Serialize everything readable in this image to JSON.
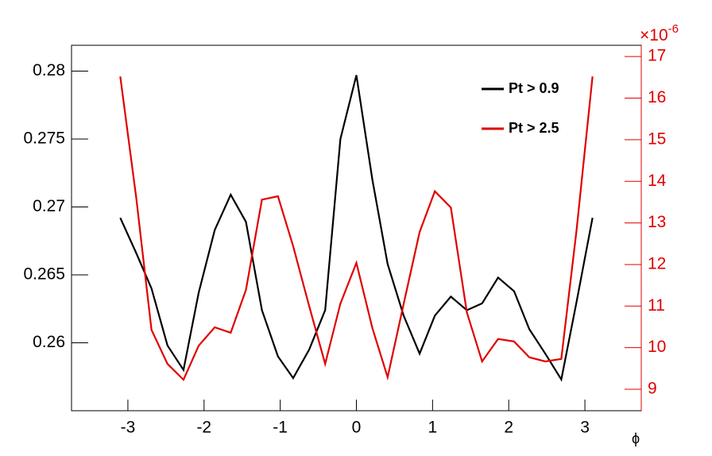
{
  "chart_data": {
    "type": "line",
    "x_label": "ϕ",
    "y2_multiplier": {
      "base": "×10",
      "exponent": "-6"
    },
    "x": [
      -3.1,
      -2.89,
      -2.69,
      -2.48,
      -2.27,
      -2.07,
      -1.86,
      -1.65,
      -1.45,
      -1.24,
      -1.03,
      -0.83,
      -0.62,
      -0.41,
      -0.21,
      0,
      0.21,
      0.41,
      0.62,
      0.83,
      1.03,
      1.24,
      1.45,
      1.65,
      1.86,
      2.07,
      2.27,
      2.48,
      2.69,
      2.89,
      3.1
    ],
    "series": [
      {
        "name": "Pt > 0.9",
        "color": "#000000",
        "values": [
          0.2692,
          0.2666,
          0.264,
          0.2598,
          0.258,
          0.2637,
          0.2683,
          0.2709,
          0.2689,
          0.2624,
          0.259,
          0.2574,
          0.2595,
          0.2624,
          0.275,
          0.2797,
          0.272,
          0.2658,
          0.262,
          0.2592,
          0.262,
          0.2634,
          0.2624,
          0.2629,
          0.2648,
          0.2638,
          0.261,
          0.2592,
          0.2573,
          0.263,
          0.2692
        ]
      },
      {
        "name": "Pt > 2.5",
        "color": "#e00000",
        "axis": "y2",
        "values": [
          16.52,
          13.6,
          10.43,
          9.61,
          9.23,
          10.05,
          10.49,
          10.36,
          11.39,
          13.56,
          13.64,
          12.44,
          11.0,
          9.61,
          11.06,
          12.04,
          10.47,
          9.29,
          11.05,
          12.78,
          13.76,
          13.37,
          10.85,
          9.67,
          10.21,
          10.15,
          9.77,
          9.67,
          9.73,
          12.82,
          16.52
        ]
      }
    ],
    "xlim": [
      -3.74,
      3.74
    ],
    "xticks": [
      -3,
      -2,
      -1,
      0,
      1,
      2,
      3
    ],
    "ylim": [
      0.255,
      0.2819
    ],
    "yticks": [
      0.26,
      0.265,
      0.27,
      0.275,
      0.28
    ],
    "y2lim": [
      8.485,
      17.27
    ],
    "y2ticks": [
      9,
      10,
      11,
      12,
      13,
      14,
      15,
      16,
      17
    ],
    "y2_color": "#e00000"
  }
}
